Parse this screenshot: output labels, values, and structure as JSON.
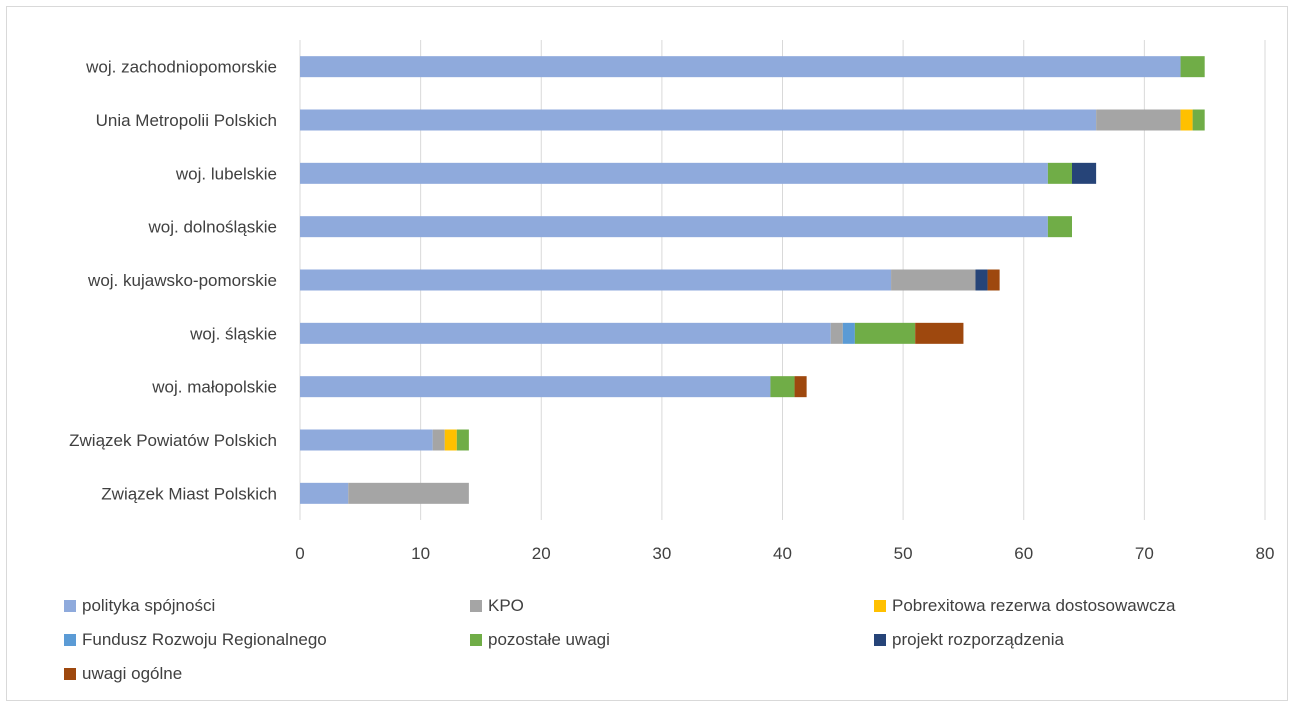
{
  "chart_data": {
    "type": "bar",
    "orientation": "horizontal",
    "stacked": true,
    "title": "",
    "xlabel": "",
    "ylabel": "",
    "xlim": [
      0,
      80
    ],
    "x_ticks": [
      "0",
      "10",
      "20",
      "30",
      "40",
      "50",
      "60",
      "70",
      "80"
    ],
    "grid": "vertical",
    "legend_position": "bottom",
    "categories": [
      "woj. zachodniopomorskie",
      "Unia Metropolii Polskich",
      "woj. lubelskie",
      "woj. dolnośląskie",
      "woj. kujawsko-pomorskie",
      "woj. śląskie",
      "woj. małopolskie",
      "Związek Powiatów Polskich",
      "Związek Miast Polskich"
    ],
    "series": [
      {
        "name": "polityka spójności",
        "color": "#8faadc",
        "values": [
          73,
          66,
          62,
          62,
          49,
          44,
          39,
          11,
          4
        ]
      },
      {
        "name": "KPO",
        "color": "#a5a5a5",
        "values": [
          0,
          7,
          0,
          0,
          7,
          1,
          0,
          1,
          10
        ]
      },
      {
        "name": "Pobrexitowa rezerwa dostosowawcza",
        "color": "#ffc000",
        "values": [
          0,
          1,
          0,
          0,
          0,
          0,
          0,
          1,
          0
        ]
      },
      {
        "name": "Fundusz Rozwoju Regionalnego",
        "color": "#5b9bd5",
        "values": [
          0,
          0,
          0,
          0,
          0,
          1,
          0,
          0,
          0
        ]
      },
      {
        "name": "pozostałe uwagi",
        "color": "#70ad47",
        "values": [
          2,
          1,
          2,
          2,
          0,
          5,
          2,
          1,
          0
        ]
      },
      {
        "name": "projekt rozporządzenia",
        "color": "#264478",
        "values": [
          0,
          0,
          2,
          0,
          1,
          0,
          0,
          0,
          0
        ]
      },
      {
        "name": "uwagi ogólne",
        "color": "#9e480e",
        "values": [
          0,
          0,
          0,
          0,
          1,
          4,
          1,
          0,
          0
        ]
      }
    ]
  }
}
